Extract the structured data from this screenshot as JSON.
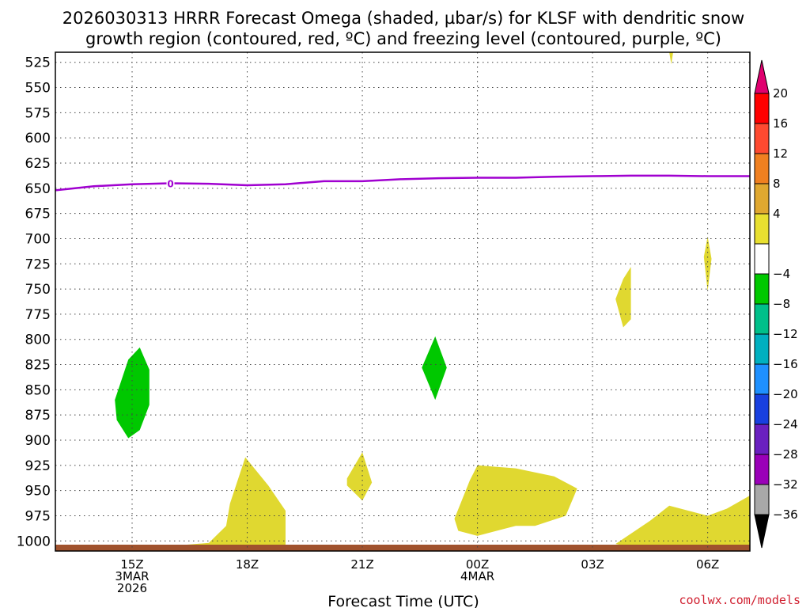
{
  "chart_data": {
    "type": "time-height cross section",
    "title_line1": "2026030313 HRRR Forecast Omega (shaded, µbar/s) for KLSF with dendritic snow",
    "title_line2": "growth region (contoured, red, ºC) and freezing level (contoured, purple, ºC)",
    "xlabel": "Forecast Time (UTC)",
    "credit": "coolwx.com/models",
    "x_range_hours": [
      13.0,
      31.1
    ],
    "x_ticks": [
      {
        "hour": 15,
        "lines": [
          "15Z",
          "3MAR",
          "2026"
        ]
      },
      {
        "hour": 18,
        "lines": [
          "18Z"
        ]
      },
      {
        "hour": 21,
        "lines": [
          "21Z"
        ]
      },
      {
        "hour": 24,
        "lines": [
          "00Z",
          "4MAR"
        ]
      },
      {
        "hour": 27,
        "lines": [
          "03Z"
        ]
      },
      {
        "hour": 30,
        "lines": [
          "06Z"
        ]
      }
    ],
    "y_range_hPa": [
      515,
      1010
    ],
    "y_ticks": [
      "525",
      "550",
      "575",
      "600",
      "625",
      "650",
      "675",
      "700",
      "725",
      "750",
      "775",
      "800",
      "825",
      "850",
      "875",
      "900",
      "925",
      "950",
      "975",
      "1000"
    ],
    "colorbar": {
      "labels": [
        "20",
        "16",
        "12",
        "8",
        "4",
        "−4",
        "−8",
        "−12",
        "−16",
        "−20",
        "−24",
        "−28",
        "−32",
        "−36"
      ],
      "colors_top_to_bottom": [
        "#ff0000",
        "#ff4a30",
        "#f08020",
        "#e0a830",
        "#e8e030",
        "#ffffff",
        "#00c800",
        "#00c08a",
        "#00b0c0",
        "#1e90ff",
        "#1840e0",
        "#6a20c0",
        "#9a00b8",
        "#a8a8a8"
      ],
      "top_arrow_color": "#e0006f",
      "bottom_arrow_color": "#000000"
    },
    "freezing_level": {
      "label": "0",
      "color": "#a000d0",
      "points": [
        [
          13.0,
          652
        ],
        [
          14.0,
          648
        ],
        [
          15.0,
          646
        ],
        [
          16.0,
          645
        ],
        [
          17.0,
          645.5
        ],
        [
          18.0,
          647
        ],
        [
          19.0,
          646
        ],
        [
          20.0,
          643
        ],
        [
          21.0,
          643
        ],
        [
          22.0,
          641
        ],
        [
          23.0,
          640
        ],
        [
          24.0,
          639.5
        ],
        [
          25.0,
          639.5
        ],
        [
          26.0,
          638.5
        ],
        [
          27.0,
          638
        ],
        [
          28.0,
          637.5
        ],
        [
          29.0,
          637.5
        ],
        [
          30.0,
          638
        ],
        [
          31.1,
          638
        ]
      ]
    },
    "omega_regions": [
      {
        "color": "#00c800",
        "value_range": [
          -8,
          -4
        ],
        "points": [
          [
            14.55,
            860
          ],
          [
            14.9,
            820
          ],
          [
            15.2,
            808
          ],
          [
            15.45,
            830
          ],
          [
            15.45,
            865
          ],
          [
            15.2,
            890
          ],
          [
            14.9,
            898
          ],
          [
            14.6,
            880
          ]
        ]
      },
      {
        "color": "#00c800",
        "value_range": [
          -8,
          -4
        ],
        "points": [
          [
            22.55,
            828
          ],
          [
            22.9,
            797
          ],
          [
            23.2,
            828
          ],
          [
            22.9,
            860
          ]
        ]
      },
      {
        "color": "#e0d830",
        "value_range": [
          4,
          8
        ],
        "points": [
          [
            14.0,
            1009
          ],
          [
            16.0,
            1005
          ],
          [
            17.0,
            1002
          ],
          [
            17.45,
            985
          ],
          [
            17.55,
            963
          ],
          [
            17.95,
            917
          ],
          [
            18.55,
            945
          ],
          [
            19.0,
            970
          ],
          [
            19.0,
            1005
          ],
          [
            18.0,
            1006
          ],
          [
            16.5,
            1005.5
          ],
          [
            14.0,
            1009.3
          ]
        ]
      },
      {
        "color": "#e0d830",
        "value_range": [
          4,
          8
        ],
        "points": [
          [
            20.6,
            938
          ],
          [
            21.0,
            912
          ],
          [
            21.25,
            942
          ],
          [
            21.0,
            960
          ],
          [
            20.6,
            945
          ]
        ]
      },
      {
        "color": "#e0d830",
        "value_range": [
          4,
          8
        ],
        "points": [
          [
            23.4,
            978
          ],
          [
            23.8,
            940
          ],
          [
            24.0,
            925
          ],
          [
            25.0,
            928
          ],
          [
            26.0,
            936
          ],
          [
            26.6,
            948
          ],
          [
            26.3,
            975
          ],
          [
            25.5,
            985
          ],
          [
            25.0,
            985
          ],
          [
            24.0,
            995
          ],
          [
            23.5,
            990
          ]
        ]
      },
      {
        "color": "#e0d830",
        "value_range": [
          4,
          8
        ],
        "points": [
          [
            27.6,
            1003
          ],
          [
            28.5,
            980
          ],
          [
            29.0,
            965
          ],
          [
            29.5,
            970
          ],
          [
            30.0,
            975
          ],
          [
            30.5,
            968
          ],
          [
            31.1,
            955
          ],
          [
            31.1,
            1005
          ],
          [
            30.0,
            1006
          ],
          [
            28.0,
            1006
          ]
        ]
      },
      {
        "color": "#e0d830",
        "value_range": [
          4,
          8
        ],
        "points": [
          [
            27.6,
            760
          ],
          [
            27.8,
            740
          ],
          [
            28.0,
            728
          ],
          [
            28.0,
            780
          ],
          [
            27.8,
            788
          ]
        ]
      },
      {
        "color": "#e0d830",
        "value_range": [
          4,
          8
        ],
        "points": [
          [
            29.9,
            718
          ],
          [
            30.0,
            698
          ],
          [
            30.1,
            720
          ],
          [
            30.0,
            752
          ]
        ]
      },
      {
        "color": "#e0d830",
        "value_range": [
          4,
          8
        ],
        "points": [
          [
            29.0,
            515
          ],
          [
            29.1,
            515
          ],
          [
            29.05,
            527
          ]
        ]
      }
    ],
    "ground_layer_color": "#a0522d"
  }
}
